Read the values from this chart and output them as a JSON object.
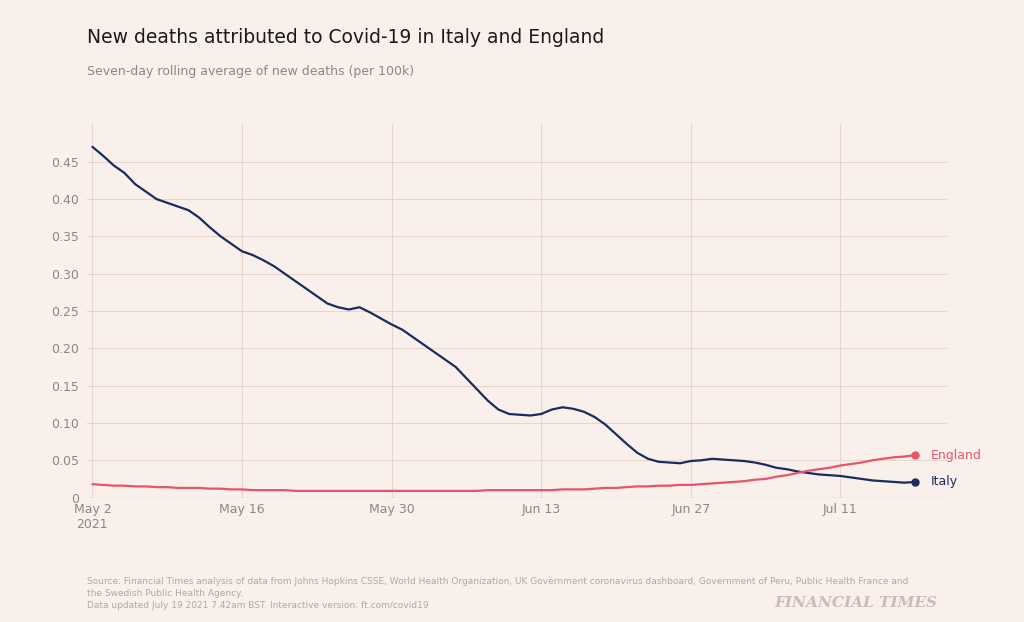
{
  "title": "New deaths attributed to Covid-19 in Italy and England",
  "subtitle": "Seven-day rolling average of new deaths (per 100k)",
  "source_text": "Source: Financial Times analysis of data from Johns Hopkins CSSE, World Health Organization, UK Government coronavirus dashboard, Government of Peru, Public Health France and\nthe Swedish Public Health Agency.\nData updated July 19 2021 7.42am BST. Interactive version: ft.com/covid19",
  "ft_logo": "FINANCIAL TIMES",
  "background_color": "#FAF0EB",
  "grid_color": "#E8D5CC",
  "italy_color": "#1A2B5F",
  "england_color": "#E8546A",
  "title_color": "#1a1a1a",
  "subtitle_color": "#888888",
  "source_color": "#aaaaaa",
  "ft_color": "#ccbbbb",
  "x_tick_labels": [
    "May 2\n2021",
    "May 16",
    "May 30",
    "Jun 13",
    "Jun 27",
    "Jul 11"
  ],
  "x_tick_positions": [
    0,
    14,
    28,
    42,
    56,
    70
  ],
  "ylim": [
    0,
    0.5
  ],
  "yticks": [
    0.0,
    0.05,
    0.1,
    0.15,
    0.2,
    0.25,
    0.3,
    0.35,
    0.4,
    0.45
  ],
  "italy_x": [
    0,
    1,
    2,
    3,
    4,
    5,
    6,
    7,
    8,
    9,
    10,
    11,
    12,
    13,
    14,
    15,
    16,
    17,
    18,
    19,
    20,
    21,
    22,
    23,
    24,
    25,
    26,
    27,
    28,
    29,
    30,
    31,
    32,
    33,
    34,
    35,
    36,
    37,
    38,
    39,
    40,
    41,
    42,
    43,
    44,
    45,
    46,
    47,
    48,
    49,
    50,
    51,
    52,
    53,
    54,
    55,
    56,
    57,
    58,
    59,
    60,
    61,
    62,
    63,
    64,
    65,
    66,
    67,
    68,
    69,
    70,
    71,
    72,
    73,
    74,
    75,
    76,
    77
  ],
  "italy_y": [
    0.47,
    0.458,
    0.445,
    0.435,
    0.42,
    0.41,
    0.4,
    0.395,
    0.39,
    0.385,
    0.375,
    0.362,
    0.35,
    0.34,
    0.33,
    0.325,
    0.318,
    0.31,
    0.3,
    0.29,
    0.28,
    0.27,
    0.26,
    0.255,
    0.252,
    0.255,
    0.248,
    0.24,
    0.232,
    0.225,
    0.215,
    0.205,
    0.195,
    0.185,
    0.175,
    0.16,
    0.145,
    0.13,
    0.118,
    0.112,
    0.111,
    0.11,
    0.112,
    0.118,
    0.121,
    0.119,
    0.115,
    0.108,
    0.098,
    0.085,
    0.072,
    0.06,
    0.052,
    0.048,
    0.047,
    0.046,
    0.049,
    0.05,
    0.052,
    0.051,
    0.05,
    0.049,
    0.047,
    0.044,
    0.04,
    0.038,
    0.035,
    0.033,
    0.031,
    0.03,
    0.029,
    0.027,
    0.025,
    0.023,
    0.022,
    0.021,
    0.02,
    0.021
  ],
  "england_x": [
    0,
    1,
    2,
    3,
    4,
    5,
    6,
    7,
    8,
    9,
    10,
    11,
    12,
    13,
    14,
    15,
    16,
    17,
    18,
    19,
    20,
    21,
    22,
    23,
    24,
    25,
    26,
    27,
    28,
    29,
    30,
    31,
    32,
    33,
    34,
    35,
    36,
    37,
    38,
    39,
    40,
    41,
    42,
    43,
    44,
    45,
    46,
    47,
    48,
    49,
    50,
    51,
    52,
    53,
    54,
    55,
    56,
    57,
    58,
    59,
    60,
    61,
    62,
    63,
    64,
    65,
    66,
    67,
    68,
    69,
    70,
    71,
    72,
    73,
    74,
    75,
    76,
    77
  ],
  "england_y": [
    0.018,
    0.017,
    0.016,
    0.016,
    0.015,
    0.015,
    0.014,
    0.014,
    0.013,
    0.013,
    0.013,
    0.012,
    0.012,
    0.011,
    0.011,
    0.01,
    0.01,
    0.01,
    0.01,
    0.009,
    0.009,
    0.009,
    0.009,
    0.009,
    0.009,
    0.009,
    0.009,
    0.009,
    0.009,
    0.009,
    0.009,
    0.009,
    0.009,
    0.009,
    0.009,
    0.009,
    0.009,
    0.01,
    0.01,
    0.01,
    0.01,
    0.01,
    0.01,
    0.01,
    0.011,
    0.011,
    0.011,
    0.012,
    0.013,
    0.013,
    0.014,
    0.015,
    0.015,
    0.016,
    0.016,
    0.017,
    0.017,
    0.018,
    0.019,
    0.02,
    0.021,
    0.022,
    0.024,
    0.025,
    0.028,
    0.03,
    0.033,
    0.036,
    0.038,
    0.04,
    0.043,
    0.045,
    0.047,
    0.05,
    0.052,
    0.054,
    0.055,
    0.057
  ]
}
